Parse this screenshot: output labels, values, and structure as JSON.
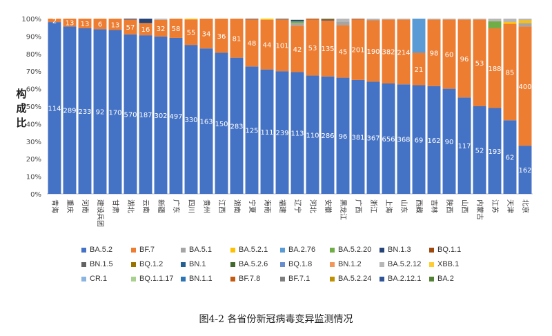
{
  "caption": "图4-2 各省份新冠病毒变异监测情况",
  "ylabel_text": "构成比",
  "chart_data": {
    "type": "bar",
    "stacked": true,
    "percent": true,
    "ylim": [
      0,
      100
    ],
    "yticks": [
      "0%",
      "10%",
      "20%",
      "30%",
      "40%",
      "50%",
      "60%",
      "70%",
      "80%",
      "90%",
      "100%"
    ],
    "ylabel": "构成比",
    "grid": false,
    "legend_position": "bottom",
    "categories": [
      "青海",
      "重庆",
      "河南",
      "建设兵团",
      "甘肃",
      "湖北",
      "云南",
      "新疆",
      "广东",
      "四川",
      "贵州",
      "江西",
      "湖南",
      "宁夏",
      "海南",
      "福建",
      "辽宁",
      "河北",
      "安徽",
      "黑龙江",
      "广西",
      "浙江",
      "上海",
      "山东",
      "西藏",
      "吉林",
      "陕西",
      "山西",
      "内蒙古",
      "江苏",
      "天津",
      "北京"
    ],
    "series": [
      {
        "name": "BA.5.2",
        "color": "#4472C4",
        "values": [
          98,
          95.5,
          94.5,
          94,
          93.5,
          91,
          90.5,
          89.8,
          89,
          85,
          83,
          80.5,
          77.7,
          72.7,
          71,
          70,
          69.5,
          67.5,
          67,
          66.3,
          65,
          64,
          63,
          62.5,
          62,
          61.5,
          60,
          55,
          50,
          49,
          42,
          27.5
        ],
        "labels": [
          "114",
          "289",
          "233",
          "92",
          "170",
          "570",
          "187",
          "302",
          "497",
          "330",
          "163",
          "150",
          "283",
          "125",
          "111",
          "239",
          "113",
          "110",
          "286",
          "96",
          "381",
          "367",
          "656",
          "368",
          "69",
          "162",
          "90",
          "117",
          "52",
          "193",
          "62",
          "162"
        ]
      },
      {
        "name": "BF.7",
        "color": "#ED7D31",
        "values": [
          2,
          4.5,
          5.5,
          6,
          6.5,
          8.5,
          7,
          9.5,
          11,
          14.5,
          17,
          19.5,
          22.3,
          27,
          28.3,
          29.5,
          26.5,
          32,
          32,
          30,
          34.8,
          35,
          36.5,
          37,
          18.5,
          38,
          39.5,
          44.5,
          49.5,
          45.5,
          55,
          68
        ],
        "labels": [
          "2",
          "13",
          "13",
          "6",
          "13",
          "57",
          "16",
          "32",
          "58",
          "55",
          "34",
          "36",
          "81",
          "48",
          "44",
          "101",
          "42",
          "53",
          "135",
          "45",
          "201",
          "190",
          "382",
          "214",
          "21",
          "98",
          "60",
          "96",
          "53",
          "188",
          "85",
          "400"
        ]
      },
      {
        "name": "BA.5.1",
        "color": "#A5A5A5",
        "values": [
          0,
          0,
          0,
          0,
          0,
          0,
          0,
          0,
          0,
          0,
          0,
          0,
          0,
          0,
          0,
          0,
          1.5,
          0,
          0,
          2,
          0,
          0.5,
          0,
          0,
          0,
          0,
          0,
          0,
          0,
          0,
          0,
          2
        ]
      },
      {
        "name": "BA.5.2.1",
        "color": "#FFC000",
        "values": [
          0,
          0,
          0,
          0,
          0,
          0,
          0,
          0,
          0,
          0.5,
          0,
          0,
          0,
          0,
          0.7,
          0,
          0,
          0,
          0,
          0,
          0,
          0,
          0,
          0,
          0,
          0,
          0,
          0,
          0,
          0,
          1,
          1.5
        ]
      },
      {
        "name": "BA.2.76",
        "color": "#5B9BD5",
        "values": [
          0,
          0,
          0,
          0,
          0,
          0,
          0,
          0,
          0,
          0,
          0,
          0,
          0,
          0,
          0,
          0,
          0,
          0,
          0,
          0,
          0,
          0,
          0,
          0,
          19.5,
          0,
          0,
          0,
          0,
          0,
          0,
          0
        ]
      },
      {
        "name": "BA.5.2.20",
        "color": "#70AD47",
        "values": [
          0,
          0,
          0,
          0,
          0,
          0,
          0,
          0,
          0,
          0,
          0,
          0,
          0,
          0,
          0,
          0,
          1,
          0,
          0,
          0,
          0,
          0,
          0,
          0,
          0,
          0,
          0,
          0,
          0,
          4,
          0,
          0
        ]
      },
      {
        "name": "BN.1.3",
        "color": "#264478",
        "values": [
          0,
          0,
          0,
          0,
          0,
          0.5,
          2.5,
          0,
          0,
          0,
          0,
          0,
          0,
          0.3,
          0,
          0,
          0.8,
          0,
          0.5,
          0,
          0.2,
          0,
          0,
          0,
          0,
          0,
          0,
          0,
          0,
          0,
          0,
          0
        ]
      },
      {
        "name": "BQ.1.1",
        "color": "#9E480E",
        "values": [
          0,
          0,
          0,
          0,
          0,
          0,
          0,
          0,
          0,
          0,
          0,
          0,
          0,
          0,
          0,
          0,
          0,
          0.5,
          0,
          0,
          0,
          0,
          0,
          0,
          0,
          0,
          0,
          0,
          0,
          0,
          0,
          0
        ]
      },
      {
        "name": "BN.1.5",
        "color": "#636363",
        "values": [
          0,
          0,
          0,
          0,
          0,
          0,
          0,
          0,
          0,
          0,
          0,
          0,
          0,
          0,
          0,
          0.5,
          0,
          0,
          0,
          0,
          0,
          0,
          0,
          0,
          0,
          0,
          0,
          0,
          0,
          0,
          0,
          0
        ]
      },
      {
        "name": "BQ.1.2",
        "color": "#997300",
        "values": [
          0,
          0,
          0,
          0,
          0,
          0,
          0,
          0,
          0,
          0,
          0,
          0,
          0,
          0,
          0,
          0,
          0,
          0,
          0.5,
          0,
          0,
          0,
          0,
          0,
          0,
          0,
          0,
          0,
          0,
          0,
          0,
          0
        ]
      },
      {
        "name": "BN.1",
        "color": "#255E91",
        "values": [
          0,
          0,
          0,
          0,
          0,
          0,
          0,
          0,
          0,
          0,
          0,
          0,
          0,
          0,
          0,
          0,
          0,
          0,
          0,
          0,
          0,
          0,
          0,
          0,
          0,
          0,
          0,
          0,
          0,
          0,
          0,
          0
        ]
      },
      {
        "name": "BA.5.2.6",
        "color": "#43682B",
        "values": [
          0,
          0,
          0,
          0,
          0,
          0,
          0,
          0,
          0,
          0,
          0,
          0,
          0,
          0,
          0,
          0,
          0,
          0,
          0,
          0,
          0,
          0,
          0,
          0,
          0,
          0,
          0,
          0,
          0,
          0,
          0,
          0
        ]
      },
      {
        "name": "BQ.1.8",
        "color": "#698ED0",
        "values": [
          0,
          0,
          0,
          0,
          0,
          0,
          0,
          0,
          0,
          0,
          0,
          0,
          0,
          0,
          0,
          0,
          0,
          0,
          0,
          0,
          0,
          0,
          0,
          0,
          0,
          0,
          0,
          0,
          0,
          0,
          0,
          0
        ]
      },
      {
        "name": "BN.1.2",
        "color": "#F1975A",
        "values": [
          0,
          0,
          0,
          0,
          0,
          0,
          0,
          0,
          0,
          0,
          0,
          0,
          0,
          0,
          0,
          0,
          0,
          0,
          0,
          0,
          0,
          0,
          0,
          0,
          0,
          0,
          0,
          0,
          0,
          0,
          0,
          0
        ]
      },
      {
        "name": "BA.5.2.12",
        "color": "#B7B7B7",
        "values": [
          0,
          0,
          0,
          0,
          0,
          0,
          0,
          0.7,
          0,
          0,
          0,
          0,
          0,
          0,
          0,
          0,
          0,
          0,
          0,
          1.7,
          0,
          0.5,
          0.5,
          0.5,
          0,
          0.5,
          0.5,
          0.5,
          0.5,
          1.5,
          2,
          1
        ]
      },
      {
        "name": "XBB.1",
        "color": "#FFCD33",
        "values": [
          0,
          0,
          0,
          0,
          0,
          0,
          0,
          0,
          0,
          0,
          0,
          0,
          0,
          0,
          0,
          0,
          0,
          0,
          0,
          0,
          0,
          0,
          0,
          0,
          0,
          0,
          0,
          0,
          0,
          0,
          0,
          0
        ]
      },
      {
        "name": "CR.1",
        "color": "#8CB4E1",
        "values": [
          0,
          0,
          0,
          0,
          0,
          0,
          0,
          0,
          0,
          0,
          0,
          0,
          0,
          0,
          0,
          0,
          0,
          0,
          0,
          0,
          0,
          0,
          0,
          0,
          0,
          0,
          0,
          0,
          0,
          0,
          0,
          0
        ]
      },
      {
        "name": "BQ.1.1.17",
        "color": "#A9D18E",
        "values": [
          0,
          0,
          0,
          0,
          0,
          0,
          0,
          0,
          0,
          0,
          0,
          0,
          0,
          0,
          0,
          0,
          0,
          0,
          0,
          0,
          0,
          0,
          0,
          0,
          0,
          0,
          0,
          0,
          0,
          0,
          0,
          0
        ]
      },
      {
        "name": "BN.1.1",
        "color": "#2E75B6",
        "values": [
          0,
          0,
          0,
          0,
          0,
          0,
          0,
          0,
          0,
          0,
          0,
          0,
          0,
          0,
          0,
          0,
          0,
          0,
          0,
          0,
          0,
          0,
          0,
          0,
          0,
          0,
          0,
          0,
          0,
          0,
          0,
          0
        ]
      },
      {
        "name": "BF.7.8",
        "color": "#C55A11",
        "values": [
          0,
          0,
          0,
          0,
          0,
          0,
          0,
          0,
          0,
          0,
          0,
          0,
          0,
          0,
          0,
          0,
          0,
          0,
          0,
          0,
          0,
          0,
          0,
          0,
          0,
          0,
          0,
          0,
          0,
          0,
          0,
          0
        ]
      },
      {
        "name": "BF.7.1",
        "color": "#7F7F7F",
        "values": [
          0,
          0,
          0,
          0,
          0,
          0,
          0,
          0,
          0,
          0,
          0,
          0,
          0,
          0,
          0,
          0,
          0,
          0,
          0,
          0,
          0,
          0,
          0,
          0,
          0,
          0,
          0,
          0,
          0,
          0,
          0,
          0
        ]
      },
      {
        "name": "BA.5.2.24",
        "color": "#BF9000",
        "values": [
          0,
          0,
          0,
          0,
          0,
          0,
          0,
          0,
          0,
          0,
          0,
          0,
          0,
          0,
          0,
          0,
          0,
          0,
          0,
          0,
          0,
          0,
          0,
          0,
          0,
          0,
          0,
          0,
          0,
          0,
          0,
          0
        ]
      },
      {
        "name": "BA.2.12.1",
        "color": "#2F5597",
        "values": [
          0,
          0,
          0,
          0,
          0,
          0,
          0,
          0,
          0,
          0,
          0,
          0,
          0,
          0,
          0,
          0,
          0,
          0,
          0,
          0,
          0,
          0,
          0,
          0,
          0,
          0,
          0,
          0,
          0,
          0,
          0,
          0
        ]
      },
      {
        "name": "BA.2",
        "color": "#548235",
        "values": [
          0,
          0,
          0,
          0,
          0,
          0,
          0,
          0,
          0,
          0,
          0,
          0,
          0,
          0,
          0,
          0,
          0,
          0,
          0,
          0,
          0,
          0,
          0,
          0,
          0,
          0,
          0,
          0,
          0,
          0,
          0,
          0
        ]
      }
    ]
  }
}
